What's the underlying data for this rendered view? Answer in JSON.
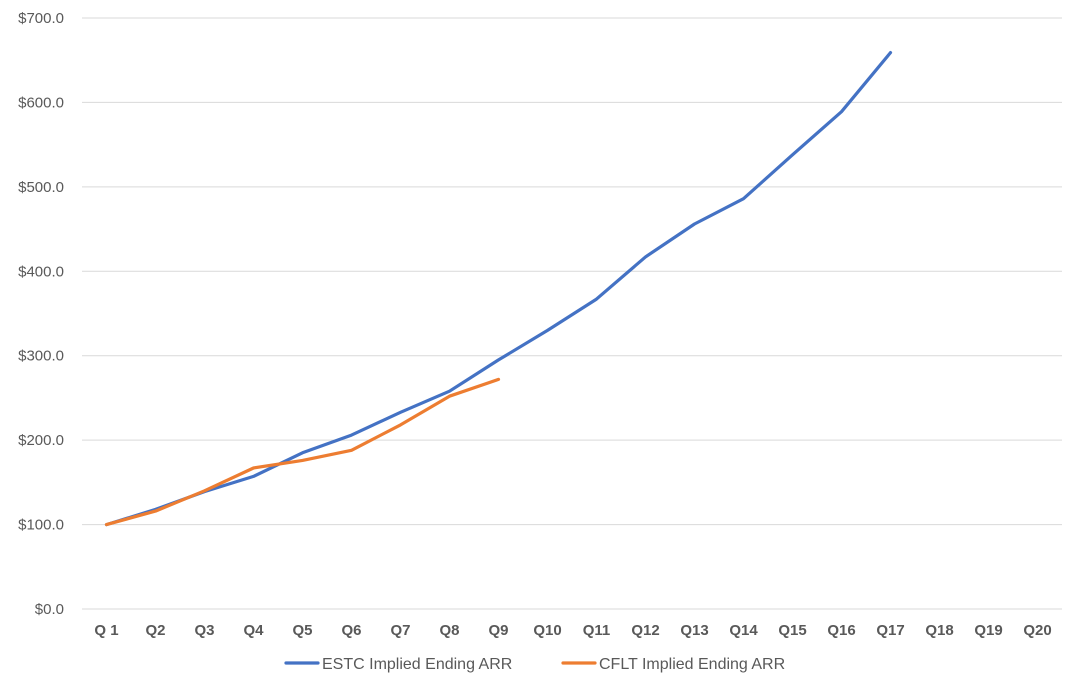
{
  "chart_data": {
    "type": "line",
    "title": "",
    "xlabel": "",
    "ylabel": "",
    "categories": [
      "Q 1",
      "Q2",
      "Q3",
      "Q4",
      "Q5",
      "Q6",
      "Q7",
      "Q8",
      "Q9",
      "Q10",
      "Q11",
      "Q12",
      "Q13",
      "Q14",
      "Q15",
      "Q16",
      "Q17",
      "Q18",
      "Q19",
      "Q20"
    ],
    "ylim": [
      0,
      700
    ],
    "yticks": [
      0,
      100,
      200,
      300,
      400,
      500,
      600,
      700
    ],
    "ytick_labels": [
      "$0.0",
      "$100.0",
      "$200.0",
      "$300.0",
      "$400.0",
      "$500.0",
      "$600.0",
      "$700.0"
    ],
    "grid": true,
    "legend_position": "bottom",
    "series": [
      {
        "name": "ESTC Implied Ending ARR",
        "color": "#4472C4",
        "values": [
          100,
          118,
          139,
          157,
          185,
          206,
          233,
          258,
          295,
          330,
          367,
          417,
          456,
          486,
          538,
          589,
          659,
          null,
          null,
          null
        ]
      },
      {
        "name": "CFLT Implied Ending ARR",
        "color": "#ED7D31",
        "values": [
          100,
          116,
          140,
          167,
          176,
          188,
          218,
          252,
          272,
          null,
          null,
          null,
          null,
          null,
          null,
          null,
          null,
          null,
          null,
          null
        ]
      }
    ]
  }
}
